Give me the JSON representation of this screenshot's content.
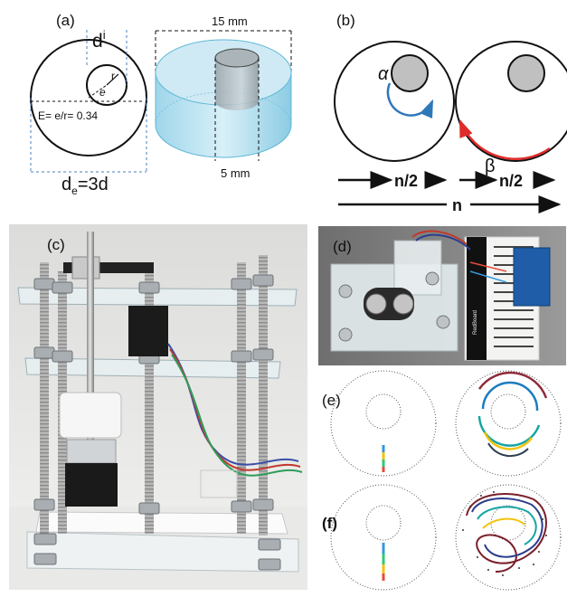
{
  "panels": {
    "a": {
      "label": "(a)",
      "di": "d",
      "di_sub": "i",
      "r": "r",
      "e": "e",
      "eq": "E= e/r= 0.34",
      "de": "d",
      "de_sub": "e",
      "de_rest": "=3d",
      "w15": "15 mm",
      "w5": "5 mm"
    },
    "b": {
      "label": "(b)",
      "alpha": "α",
      "beta": "β",
      "n2a": "n/2",
      "n2b": "n/2",
      "n": "n"
    },
    "c": {
      "label": "(c)"
    },
    "d": {
      "label": "(d)",
      "board_text": "RedBoard"
    },
    "e": {
      "label": "(e)"
    },
    "f": {
      "label": "(f)"
    }
  },
  "colors": {
    "cylinder": "#bfe6f2",
    "cylinder_edge": "#5fb8d8",
    "rod": "#c8c8c8",
    "arrow_blue": "#2f78b8",
    "arrow_red": "#e02b2b"
  }
}
